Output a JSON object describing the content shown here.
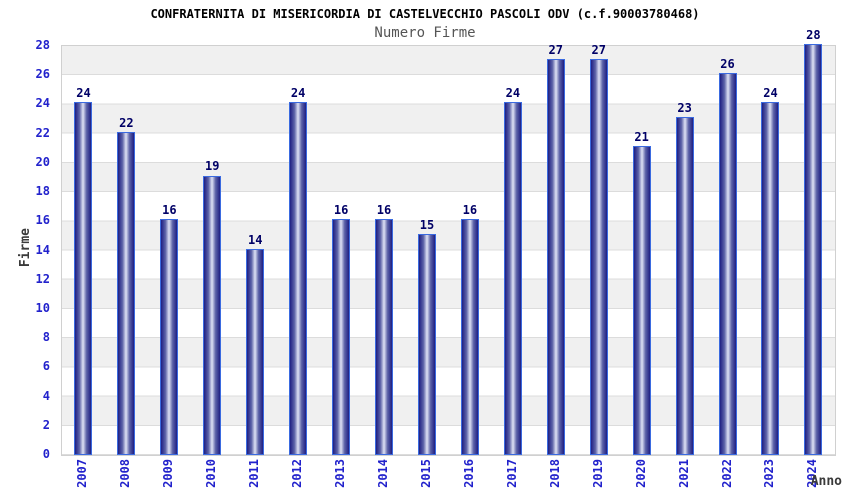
{
  "title": "CONFRATERNITA DI MISERICORDIA DI CASTELVECCHIO PASCOLI ODV (c.f.90003780468)",
  "subtitle": "Numero Firme",
  "ylabel": "Firme",
  "xlabel": "Anno",
  "colors": {
    "title_color": "#000000",
    "subtitle_color": "#555555",
    "axis_label_color": "#3a3a3a",
    "tick_color": "#2222cc",
    "value_color": "#000066",
    "bar_border": "#3a6ae0",
    "bar_dark": "#1e1e82",
    "bar_mid": "#5d63a8",
    "bar_light": "#dfe2f5",
    "band_gray": "#f0f0f0",
    "grid_line": "#dcdcdc",
    "plot_border": "#d0d0d0"
  },
  "chart_data": {
    "type": "bar",
    "title": "CONFRATERNITA DI MISERICORDIA DI CASTELVECCHIO PASCOLI ODV (c.f.90003780468)",
    "subtitle": "Numero Firme",
    "xlabel": "Anno",
    "ylabel": "Firme",
    "categories": [
      "2007",
      "2008",
      "2009",
      "2010",
      "2011",
      "2012",
      "2013",
      "2014",
      "2015",
      "2016",
      "2017",
      "2018",
      "2019",
      "2020",
      "2021",
      "2022",
      "2023",
      "2024"
    ],
    "values": [
      24,
      22,
      16,
      19,
      14,
      24,
      16,
      16,
      15,
      16,
      24,
      27,
      27,
      21,
      23,
      26,
      24,
      28
    ],
    "ylim": [
      0,
      28
    ],
    "ytick_step": 2,
    "grid": "horizontal-bands-alternating",
    "legend": "none",
    "bar_value_labels": true
  }
}
